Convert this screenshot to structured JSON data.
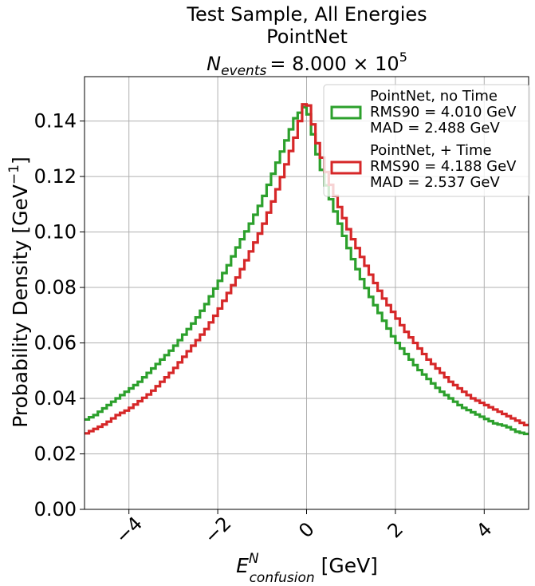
{
  "chart_data": {
    "type": "step-histogram",
    "title_lines": [
      "Test Sample, All Energies",
      "PointNet"
    ],
    "title_events": {
      "lhs_base": "N",
      "lhs_sub": "events",
      "rhs": "= 8.000 × 10",
      "rhs_exp": "5"
    },
    "xlabel": {
      "base": "E",
      "sup": "N",
      "sub": "confusion",
      "unit": " [GeV]"
    },
    "ylabel": {
      "text": "Probability Density [GeV",
      "sup": "−1",
      "close": "]"
    },
    "xlim": [
      -5,
      5
    ],
    "ylim": [
      0,
      0.156
    ],
    "xticks": [
      -4,
      -2,
      0,
      2,
      4
    ],
    "xtick_labels": [
      "−4",
      "−2",
      "0",
      "2",
      "4"
    ],
    "yticks": [
      0,
      0.02,
      0.04,
      0.06,
      0.08,
      0.1,
      0.12,
      0.14
    ],
    "ytick_labels": [
      "0.00",
      "0.02",
      "0.04",
      "0.06",
      "0.08",
      "0.10",
      "0.12",
      "0.14"
    ],
    "grid": true,
    "legend_position": "top-right",
    "series": [
      {
        "name": "PointNet, no Time",
        "stats": [
          "RMS90 = 4.010 GeV",
          "MAD = 2.488 GeV"
        ],
        "color": "#2ca02c",
        "x": [
          -5,
          -4.75,
          -4.5,
          -4.25,
          -4,
          -3.75,
          -3.5,
          -3.25,
          -3,
          -2.75,
          -2.5,
          -2.25,
          -2,
          -1.75,
          -1.5,
          -1.25,
          -1,
          -0.75,
          -0.5,
          -0.25,
          0,
          0.25,
          0.5,
          0.75,
          1,
          1.25,
          1.5,
          1.75,
          2,
          2.25,
          2.5,
          2.75,
          3,
          3.25,
          3.5,
          3.75,
          4,
          4.25,
          4.5,
          4.75,
          5
        ],
        "y": [
          0.032,
          0.034,
          0.037,
          0.04,
          0.043,
          0.046,
          0.05,
          0.054,
          0.058,
          0.063,
          0.068,
          0.074,
          0.081,
          0.088,
          0.096,
          0.103,
          0.111,
          0.121,
          0.131,
          0.141,
          0.146,
          0.128,
          0.114,
          0.103,
          0.092,
          0.083,
          0.075,
          0.068,
          0.061,
          0.056,
          0.051,
          0.047,
          0.043,
          0.04,
          0.037,
          0.035,
          0.033,
          0.031,
          0.03,
          0.028,
          0.027
        ]
      },
      {
        "name": "PointNet, + Time",
        "stats": [
          "RMS90 = 4.188 GeV",
          "MAD = 2.537 GeV"
        ],
        "color": "#d62728",
        "x": [
          -5,
          -4.75,
          -4.5,
          -4.25,
          -4,
          -3.75,
          -3.5,
          -3.25,
          -3,
          -2.75,
          -2.5,
          -2.25,
          -2,
          -1.75,
          -1.5,
          -1.25,
          -1,
          -0.75,
          -0.5,
          -0.25,
          0,
          0.25,
          0.5,
          0.75,
          1,
          1.25,
          1.5,
          1.75,
          2,
          2.25,
          2.5,
          2.75,
          3,
          3.25,
          3.5,
          3.75,
          4,
          4.25,
          4.5,
          4.75,
          5
        ],
        "y": [
          0.027,
          0.029,
          0.031,
          0.034,
          0.036,
          0.039,
          0.042,
          0.046,
          0.05,
          0.055,
          0.06,
          0.065,
          0.071,
          0.078,
          0.085,
          0.093,
          0.101,
          0.111,
          0.122,
          0.134,
          0.149,
          0.132,
          0.119,
          0.109,
          0.099,
          0.091,
          0.083,
          0.076,
          0.07,
          0.064,
          0.059,
          0.054,
          0.05,
          0.046,
          0.043,
          0.04,
          0.038,
          0.036,
          0.034,
          0.032,
          0.03
        ]
      }
    ]
  }
}
